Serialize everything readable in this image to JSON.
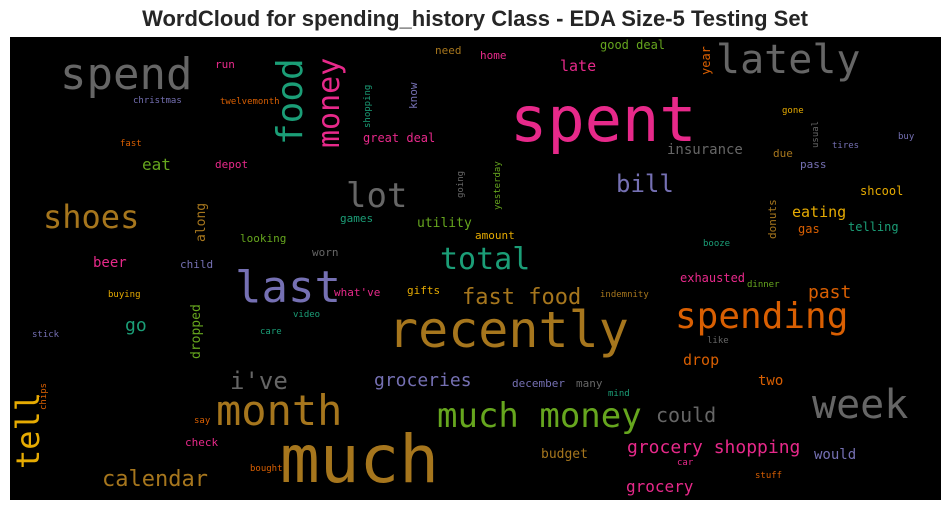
{
  "title": "WordCloud for spending_history Class - EDA Size-5 Testing Set",
  "colors": {
    "pink": "#e7298a",
    "gray": "#666666",
    "orange": "#d95f02",
    "olive": "#66a61e",
    "gold": "#a6761d",
    "teal": "#1b9e77",
    "purple": "#7570b3",
    "yellow": "#e6ab02"
  },
  "words": {
    "spent": "spent",
    "much": "much",
    "recently": "recently",
    "last": "last",
    "month": "month",
    "spend": "spend",
    "lately": "lately",
    "week": "week",
    "spending": "spending",
    "much_money": "much money",
    "shoes": "shoes",
    "food": "food",
    "money": "money",
    "lot": "lot",
    "total": "total",
    "tell": "tell",
    "fast_food": "fast food",
    "calendar": "calendar",
    "ive": "i've",
    "grocery_shopping": "grocery shopping",
    "groceries": "groceries",
    "bill": "bill",
    "could": "could",
    "past": "past",
    "grocery": "grocery",
    "go": "go",
    "eating": "eating",
    "eat": "eat",
    "drop": "drop",
    "dropped": "dropped",
    "insurance": "insurance",
    "late": "late",
    "year": "year",
    "great_deal": "great deal",
    "good_deal": "good deal",
    "would": "would",
    "budget": "budget",
    "two": "two",
    "beer": "beer",
    "along": "along",
    "utility": "utility",
    "shcool": "shcool",
    "telling": "telling",
    "gas": "gas",
    "donuts": "donuts",
    "exhausted": "exhausted",
    "amount": "amount",
    "gifts": "gifts",
    "whatve": "what've",
    "looking": "looking",
    "child": "child",
    "worn": "worn",
    "games": "games",
    "depot": "depot",
    "shopping": "shopping",
    "know": "know",
    "need": "need",
    "home": "home",
    "run": "run",
    "twelvemonth": "twelvemonth",
    "christmas": "christmas",
    "fast": "fast",
    "due": "due",
    "pass": "pass",
    "december": "december",
    "many": "many",
    "check": "check",
    "say": "say",
    "bought": "bought",
    "car": "car",
    "stuff": "stuff",
    "chips": "chips",
    "stick": "stick",
    "care": "care",
    "video": "video",
    "buying": "buying",
    "indemnity": "indemnity",
    "dinner": "dinner",
    "like": "like",
    "mind": "mind",
    "booze": "booze",
    "gone": "gone",
    "usual": "usual",
    "tires": "tires",
    "buy": "buy",
    "going": "going",
    "yesterday": "yesterday"
  }
}
